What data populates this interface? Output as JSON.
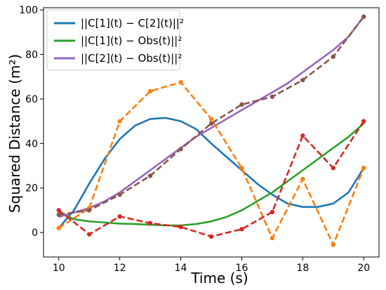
{
  "chart_data": {
    "type": "line",
    "xlabel": "Time (s)",
    "ylabel": "Squared Distance (m²)",
    "xlim": [
      9.5,
      20.5
    ],
    "ylim": [
      -11,
      101
    ],
    "xticks": [
      10,
      12,
      14,
      16,
      18,
      20
    ],
    "yticks": [
      0,
      20,
      40,
      60,
      80,
      100
    ],
    "grid": false,
    "legend_position": "top-left",
    "legend": [
      "||C[1](t) − C[2](t)||²",
      "||C[1](t) − Obs(t)||²",
      "||C[2](t) − Obs(t)||²"
    ],
    "series": [
      {
        "name": "||C[1](t) − C[2](t)||²",
        "style": "smooth",
        "color": "#1f77b4",
        "x": [
          10,
          10.5,
          11,
          11.5,
          12,
          12.5,
          13,
          13.5,
          14,
          14.5,
          15,
          15.5,
          16,
          16.5,
          17,
          17.5,
          18,
          18.5,
          19,
          19.5,
          20
        ],
        "y": [
          2,
          10,
          22,
          33,
          42,
          48,
          51,
          51.5,
          50,
          46.5,
          40,
          34,
          28,
          22,
          17,
          13,
          11.5,
          11.5,
          13,
          18,
          29
        ]
      },
      {
        "name": "||C[1](t) − Obs(t)||²",
        "style": "smooth",
        "color": "#2ca02c",
        "x": [
          10,
          10.5,
          11,
          11.5,
          12,
          12.5,
          13,
          13.5,
          14,
          14.5,
          15,
          15.5,
          16,
          16.5,
          17,
          17.5,
          18,
          18.5,
          19,
          19.5,
          20
        ],
        "y": [
          9,
          6,
          5,
          4.5,
          4,
          3.8,
          3.5,
          3.2,
          3.2,
          3.8,
          5,
          7,
          10,
          14,
          18,
          23,
          28,
          33,
          38,
          43,
          49
        ]
      },
      {
        "name": "||C[2](t) − Obs(t)||²",
        "style": "smooth",
        "color": "#9467bd",
        "x": [
          10,
          10.5,
          11,
          11.5,
          12,
          12.5,
          13,
          13.5,
          14,
          14.5,
          15,
          15.5,
          16,
          16.5,
          17,
          17.5,
          18,
          18.5,
          19,
          19.5,
          20
        ],
        "y": [
          7,
          9,
          11,
          14,
          18,
          23,
          28,
          33,
          38,
          43,
          47,
          51,
          55,
          59,
          63,
          67,
          72,
          77,
          82,
          88,
          97
        ]
      },
      {
        "style": "dashed-markers",
        "color": "#ff7f0e",
        "x": [
          10,
          11,
          12,
          13,
          14,
          15,
          16,
          17,
          18,
          19,
          20
        ],
        "y": [
          2,
          11,
          50,
          63.5,
          67.5,
          51,
          29,
          -2.5,
          24,
          -5.5,
          29
        ]
      },
      {
        "style": "dashed-markers",
        "color": "#d62728",
        "x": [
          10,
          11,
          12,
          13,
          14,
          15,
          16,
          17,
          18,
          19,
          20
        ],
        "y": [
          10,
          -0.8,
          7.2,
          4.2,
          2.5,
          -1.8,
          1.5,
          9.2,
          43.5,
          29,
          50
        ]
      },
      {
        "style": "dashed-markers",
        "color": "#8c564b",
        "x": [
          10,
          11,
          12,
          13,
          14,
          15,
          16,
          17,
          18,
          19,
          20
        ],
        "y": [
          8,
          10,
          17,
          25.5,
          37.5,
          49,
          57.5,
          61,
          68.5,
          79,
          97
        ]
      }
    ]
  }
}
